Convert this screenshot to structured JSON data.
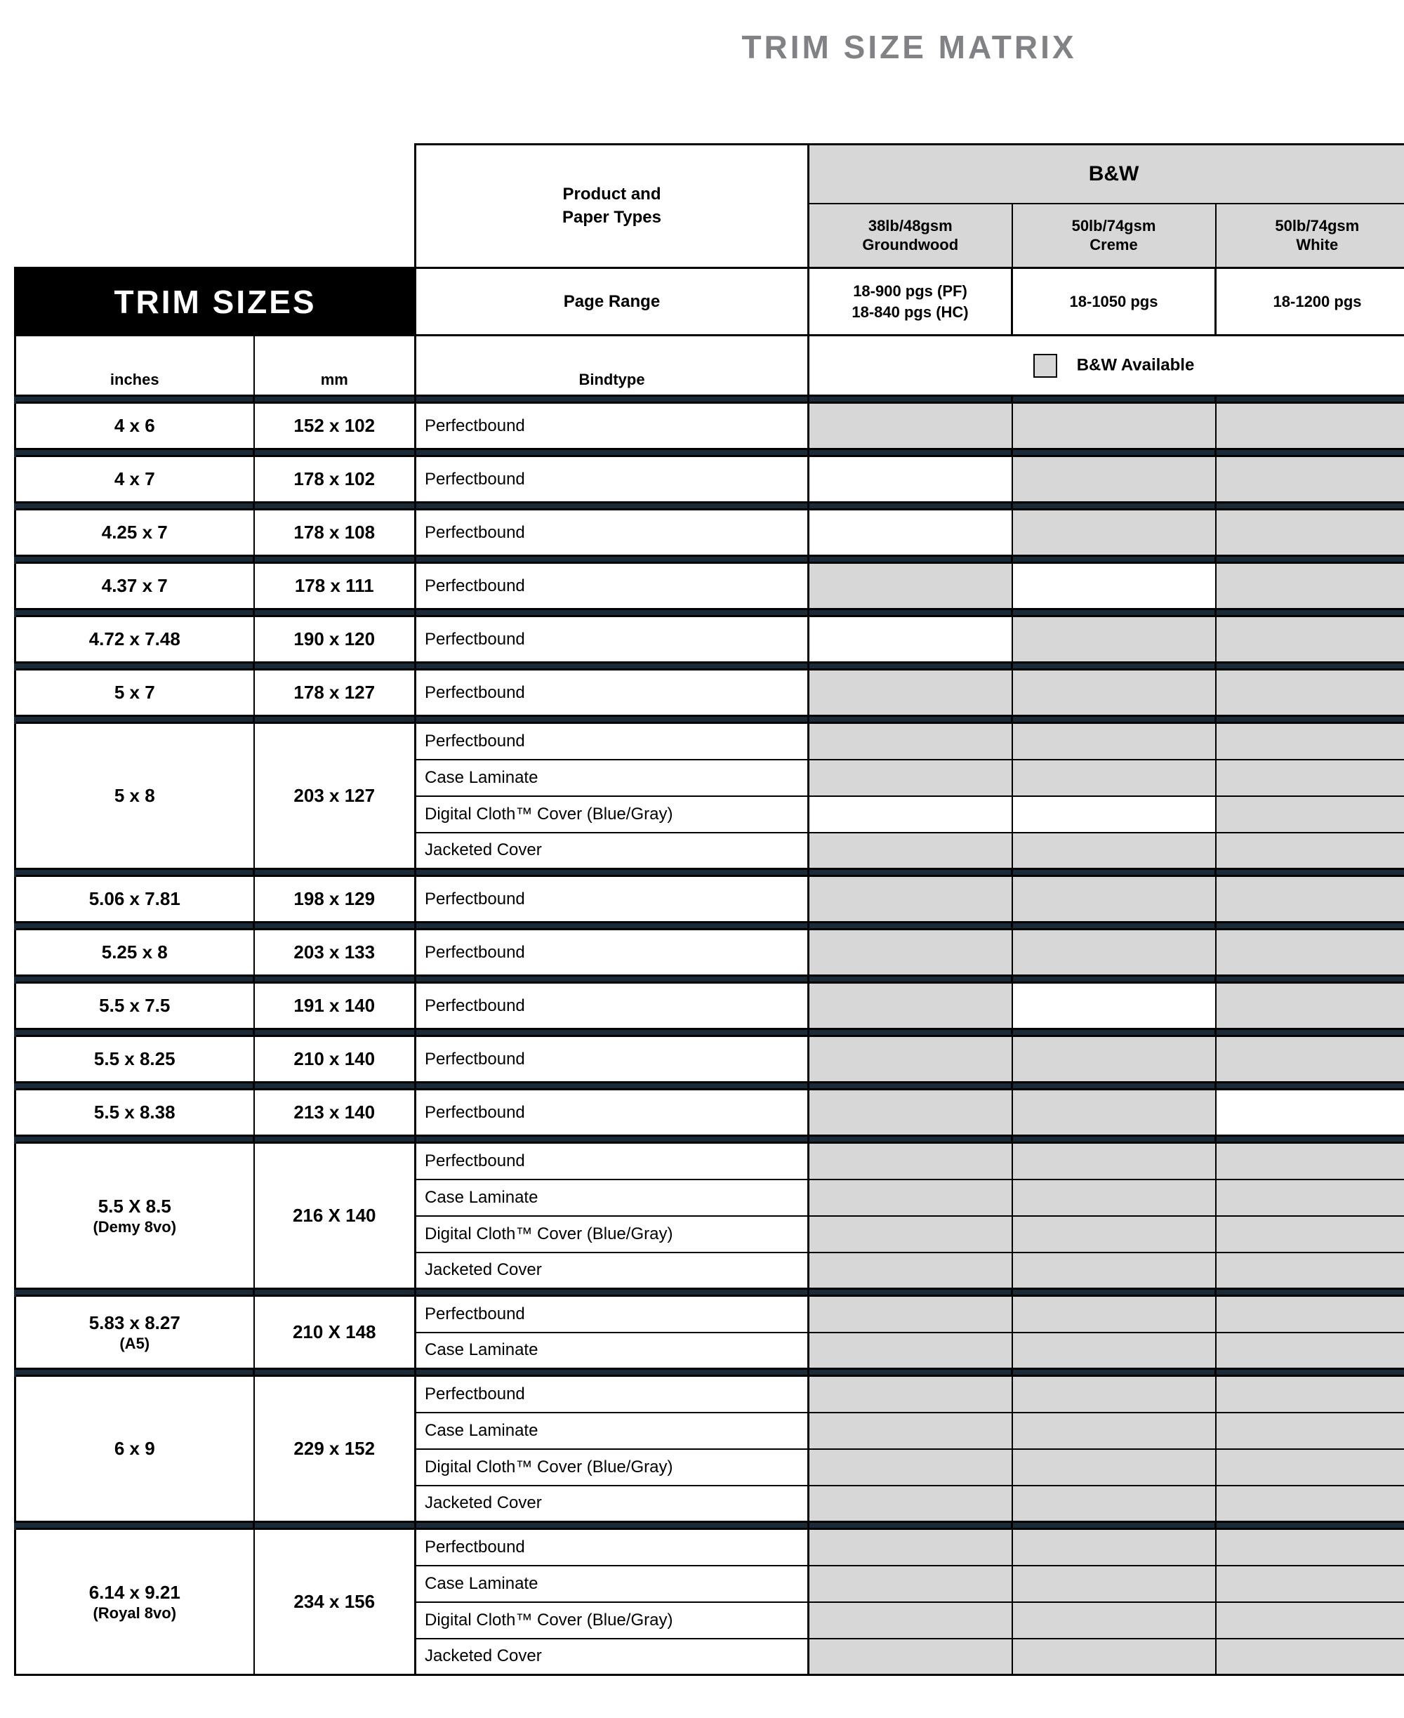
{
  "colors": {
    "title_gray": "#808285",
    "header_fill": "#d7d7d7",
    "available_fill": "#d7d7d7",
    "separator": "#1a2a38",
    "border": "#000000",
    "background": "#ffffff"
  },
  "title": "TRIM SIZE MATRIX",
  "header": {
    "product_types_l1": "Product and",
    "product_types_l2": "Paper Types",
    "bw_title": "B&W",
    "trim_sizes": "TRIM SIZES",
    "page_range": "Page Range",
    "inches": "inches",
    "mm": "mm",
    "bindtype": "Bindtype",
    "legend": "B&W Available"
  },
  "papers": [
    {
      "name_l1": "38lb/48gsm",
      "name_l2": "Groundwood",
      "range_l1": "18-900 pgs (PF)",
      "range_l2": "18-840 pgs (HC)"
    },
    {
      "name_l1": "50lb/74gsm",
      "name_l2": "Creme",
      "range_l1": "18-1050 pgs",
      "range_l2": ""
    },
    {
      "name_l1": "50lb/74gsm",
      "name_l2": "White",
      "range_l1": "18-1200 pgs",
      "range_l2": ""
    }
  ],
  "rows": [
    {
      "inches": "4 x 6",
      "mm": "152 x 102",
      "binds": [
        {
          "label": "Perfectbound",
          "avail": [
            1,
            1,
            1
          ]
        }
      ]
    },
    {
      "inches": "4 x 7",
      "mm": "178 x 102",
      "binds": [
        {
          "label": "Perfectbound",
          "avail": [
            0,
            1,
            1
          ]
        }
      ]
    },
    {
      "inches": "4.25 x 7",
      "mm": "178 x 108",
      "binds": [
        {
          "label": "Perfectbound",
          "avail": [
            0,
            1,
            1
          ]
        }
      ]
    },
    {
      "inches": "4.37 x 7",
      "mm": "178 x 111",
      "binds": [
        {
          "label": "Perfectbound",
          "avail": [
            1,
            0,
            1
          ]
        }
      ]
    },
    {
      "inches": "4.72 x 7.48",
      "mm": "190 x 120",
      "binds": [
        {
          "label": "Perfectbound",
          "avail": [
            0,
            1,
            1
          ]
        }
      ]
    },
    {
      "inches": "5 x 7",
      "mm": "178 x 127",
      "binds": [
        {
          "label": "Perfectbound",
          "avail": [
            1,
            1,
            1
          ]
        }
      ]
    },
    {
      "inches": "5 x 8",
      "mm": "203 x 127",
      "binds": [
        {
          "label": "Perfectbound",
          "avail": [
            1,
            1,
            1
          ]
        },
        {
          "label": "Case Laminate",
          "avail": [
            1,
            1,
            1
          ]
        },
        {
          "label": "Digital Cloth™ Cover (Blue/Gray)",
          "avail": [
            0,
            0,
            1
          ]
        },
        {
          "label": "Jacketed Cover",
          "avail": [
            1,
            1,
            1
          ]
        }
      ]
    },
    {
      "inches": "5.06 x 7.81",
      "mm": "198 x 129",
      "binds": [
        {
          "label": "Perfectbound",
          "avail": [
            1,
            1,
            1
          ]
        }
      ]
    },
    {
      "inches": "5.25 x 8",
      "mm": "203 x 133",
      "binds": [
        {
          "label": "Perfectbound",
          "avail": [
            1,
            1,
            1
          ]
        }
      ]
    },
    {
      "inches": "5.5 x 7.5",
      "mm": "191 x 140",
      "binds": [
        {
          "label": "Perfectbound",
          "avail": [
            1,
            0,
            1
          ]
        }
      ]
    },
    {
      "inches": "5.5 x 8.25",
      "mm": "210 x 140",
      "binds": [
        {
          "label": "Perfectbound",
          "avail": [
            1,
            1,
            1
          ]
        }
      ]
    },
    {
      "inches": "5.5 x 8.38",
      "mm": "213 x 140",
      "binds": [
        {
          "label": "Perfectbound",
          "avail": [
            1,
            1,
            0
          ]
        }
      ]
    },
    {
      "inches": "5.5 X 8.5",
      "inches_sub": "(Demy 8vo)",
      "mm": "216 X 140",
      "binds": [
        {
          "label": "Perfectbound",
          "avail": [
            1,
            1,
            1
          ]
        },
        {
          "label": "Case Laminate",
          "avail": [
            1,
            1,
            1
          ]
        },
        {
          "label": "Digital Cloth™ Cover (Blue/Gray)",
          "avail": [
            1,
            1,
            1
          ]
        },
        {
          "label": "Jacketed Cover",
          "avail": [
            1,
            1,
            1
          ]
        }
      ]
    },
    {
      "inches": "5.83 x 8.27",
      "inches_sub": "(A5)",
      "mm": "210 X 148",
      "binds": [
        {
          "label": "Perfectbound",
          "avail": [
            1,
            1,
            1
          ]
        },
        {
          "label": "Case Laminate",
          "avail": [
            1,
            1,
            1
          ]
        }
      ]
    },
    {
      "inches": "6 x 9",
      "mm": "229 x 152",
      "binds": [
        {
          "label": "Perfectbound",
          "avail": [
            1,
            1,
            1
          ]
        },
        {
          "label": "Case Laminate",
          "avail": [
            1,
            1,
            1
          ]
        },
        {
          "label": "Digital Cloth™ Cover (Blue/Gray)",
          "avail": [
            1,
            1,
            1
          ]
        },
        {
          "label": "Jacketed Cover",
          "avail": [
            1,
            1,
            1
          ]
        }
      ]
    },
    {
      "inches": "6.14 x 9.21",
      "inches_sub": "(Royal 8vo)",
      "mm": "234 x 156",
      "binds": [
        {
          "label": "Perfectbound",
          "avail": [
            1,
            1,
            1
          ]
        },
        {
          "label": "Case Laminate",
          "avail": [
            1,
            1,
            1
          ]
        },
        {
          "label": "Digital Cloth™ Cover (Blue/Gray)",
          "avail": [
            1,
            1,
            1
          ]
        },
        {
          "label": "Jacketed Cover",
          "avail": [
            1,
            1,
            1
          ]
        }
      ]
    }
  ]
}
